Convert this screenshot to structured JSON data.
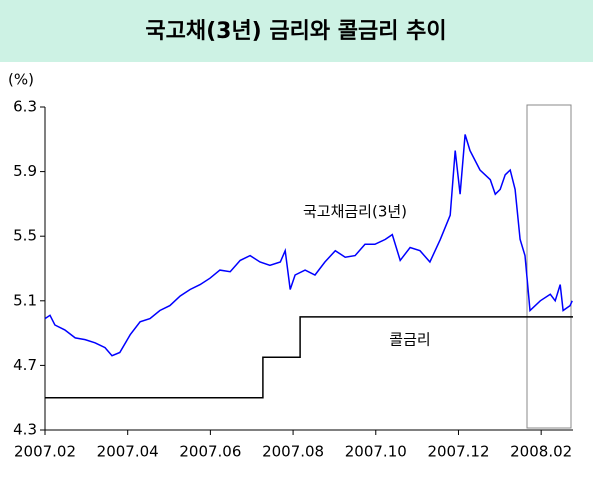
{
  "chart_data": {
    "type": "line",
    "title": "국고채(3년) 금리와 콜금리 추이",
    "y_label": "(%)",
    "ylim": [
      4.3,
      6.3
    ],
    "yticks": [
      4.3,
      4.7,
      5.1,
      5.5,
      5.9,
      6.3
    ],
    "xlim": [
      0,
      12.77
    ],
    "xticks": [
      {
        "value": 0,
        "label": "2007.02"
      },
      {
        "value": 2,
        "label": "2007.04"
      },
      {
        "value": 4,
        "label": "2007.06"
      },
      {
        "value": 6,
        "label": "2007.08"
      },
      {
        "value": 8,
        "label": "2007.10"
      },
      {
        "value": 10,
        "label": "2007.12"
      },
      {
        "value": 12,
        "label": "2008.02"
      }
    ],
    "series": [
      {
        "name": "국고채금리(3년)",
        "color": "#0000ff",
        "x": [
          0,
          0.12,
          0.24,
          0.48,
          0.73,
          0.97,
          1.21,
          1.45,
          1.62,
          1.81,
          2.06,
          2.3,
          2.54,
          2.78,
          3.02,
          3.27,
          3.51,
          3.75,
          3.99,
          4.23,
          4.48,
          4.72,
          4.96,
          5.2,
          5.44,
          5.69,
          5.81,
          5.93,
          6.05,
          6.29,
          6.53,
          6.77,
          7.02,
          7.26,
          7.5,
          7.74,
          7.98,
          8.23,
          8.4,
          8.59,
          8.83,
          9.07,
          9.31,
          9.56,
          9.8,
          9.92,
          10.04,
          10.16,
          10.28,
          10.52,
          10.77,
          10.89,
          11.01,
          11.13,
          11.25,
          11.37,
          11.49,
          11.61,
          11.73,
          11.98,
          12.22,
          12.34,
          12.46,
          12.53,
          12.7,
          12.75
        ],
        "values": [
          4.99,
          5.01,
          4.95,
          4.92,
          4.87,
          4.86,
          4.84,
          4.81,
          4.76,
          4.78,
          4.89,
          4.97,
          4.99,
          5.04,
          5.07,
          5.13,
          5.17,
          5.2,
          5.24,
          5.29,
          5.28,
          5.35,
          5.38,
          5.34,
          5.32,
          5.34,
          5.41,
          5.17,
          5.26,
          5.29,
          5.26,
          5.34,
          5.41,
          5.37,
          5.38,
          5.45,
          5.45,
          5.48,
          5.51,
          5.35,
          5.43,
          5.41,
          5.34,
          5.48,
          5.63,
          6.03,
          5.76,
          6.13,
          6.03,
          5.91,
          5.85,
          5.76,
          5.79,
          5.88,
          5.91,
          5.79,
          5.48,
          5.38,
          5.04,
          5.1,
          5.14,
          5.1,
          5.2,
          5.04,
          5.07,
          5.1
        ]
      },
      {
        "name": "콜금리",
        "color": "#000000",
        "x": [
          0,
          5.27,
          5.27,
          6.17,
          6.17,
          12.77
        ],
        "values": [
          4.5,
          4.5,
          4.75,
          4.75,
          5.0,
          5.0
        ]
      }
    ]
  }
}
